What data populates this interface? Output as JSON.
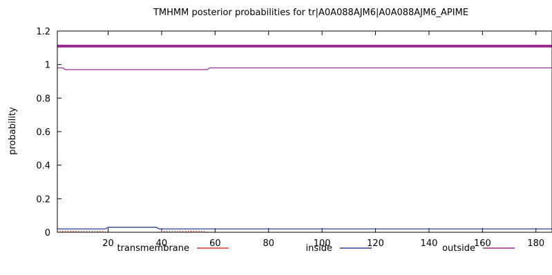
{
  "chart_data": {
    "type": "line",
    "title": "TMHMM posterior probabilities for tr|A0A088AJM6|A0A088AJM6_APIME",
    "xlabel": "",
    "ylabel": "probability",
    "xlim": [
      1,
      186
    ],
    "ylim": [
      0,
      1.2
    ],
    "x_ticks": [
      20,
      40,
      60,
      80,
      100,
      120,
      140,
      160,
      180
    ],
    "y_ticks": [
      0,
      0.2,
      0.4,
      0.6,
      0.8,
      1,
      1.2
    ],
    "legend_position": "bottom",
    "grid": false,
    "topology_bar": {
      "state": "outside",
      "y": 1.11,
      "x_range": [
        1,
        186
      ],
      "color": "#9c2a8f"
    },
    "series": [
      {
        "name": "transmembrane",
        "color": "#e8312e",
        "style": "impulses",
        "points": [
          [
            2,
            0.01
          ],
          [
            18,
            0.01
          ],
          [
            20,
            0.0
          ],
          [
            38,
            0.0
          ],
          [
            40,
            0.01
          ],
          [
            56,
            0.01
          ],
          [
            58,
            0.0
          ],
          [
            186,
            0.0
          ]
        ]
      },
      {
        "name": "inside",
        "color": "#2a3e9e",
        "style": "line",
        "points": [
          [
            1,
            0.02
          ],
          [
            19,
            0.02
          ],
          [
            20,
            0.03
          ],
          [
            38,
            0.03
          ],
          [
            39,
            0.02
          ],
          [
            186,
            0.02
          ]
        ]
      },
      {
        "name": "outside",
        "color": "#9c2a8f",
        "style": "line",
        "points": [
          [
            1,
            0.98
          ],
          [
            3,
            0.98
          ],
          [
            4,
            0.97
          ],
          [
            57,
            0.97
          ],
          [
            58,
            0.98
          ],
          [
            186,
            0.98
          ]
        ]
      }
    ]
  }
}
